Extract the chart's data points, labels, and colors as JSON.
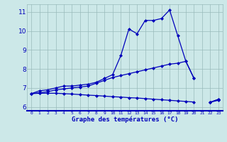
{
  "hours": [
    0,
    1,
    2,
    3,
    4,
    5,
    6,
    7,
    8,
    9,
    10,
    11,
    12,
    13,
    14,
    15,
    16,
    17,
    18,
    19,
    20,
    21,
    22,
    23
  ],
  "line_actual": [
    6.7,
    6.85,
    6.9,
    7.0,
    7.1,
    7.1,
    7.15,
    7.2,
    7.3,
    7.5,
    7.7,
    8.7,
    10.1,
    9.85,
    10.55,
    10.55,
    10.65,
    11.1,
    9.75,
    8.4,
    7.5,
    null,
    6.25,
    6.4
  ],
  "line_upper": [
    6.7,
    6.75,
    6.8,
    6.9,
    6.95,
    7.0,
    7.05,
    7.1,
    7.25,
    7.4,
    7.55,
    7.65,
    7.75,
    7.85,
    7.95,
    8.05,
    8.15,
    8.25,
    8.3,
    8.4,
    7.5,
    null,
    6.25,
    6.4
  ],
  "line_lower": [
    6.7,
    6.72,
    6.72,
    6.72,
    6.7,
    6.68,
    6.65,
    6.62,
    6.6,
    6.57,
    6.54,
    6.52,
    6.49,
    6.47,
    6.44,
    6.41,
    6.38,
    6.35,
    6.32,
    6.29,
    6.26,
    null,
    6.25,
    6.35
  ],
  "ylim": [
    5.8,
    11.4
  ],
  "yticks": [
    6,
    7,
    8,
    9,
    10,
    11
  ],
  "xlabel": "Graphe des températures (°C)",
  "line_color": "#0000bb",
  "bg_color": "#cce8e8",
  "grid_color": "#99bbbb",
  "marker": "D",
  "marker_size": 2.0,
  "line_width": 0.9
}
